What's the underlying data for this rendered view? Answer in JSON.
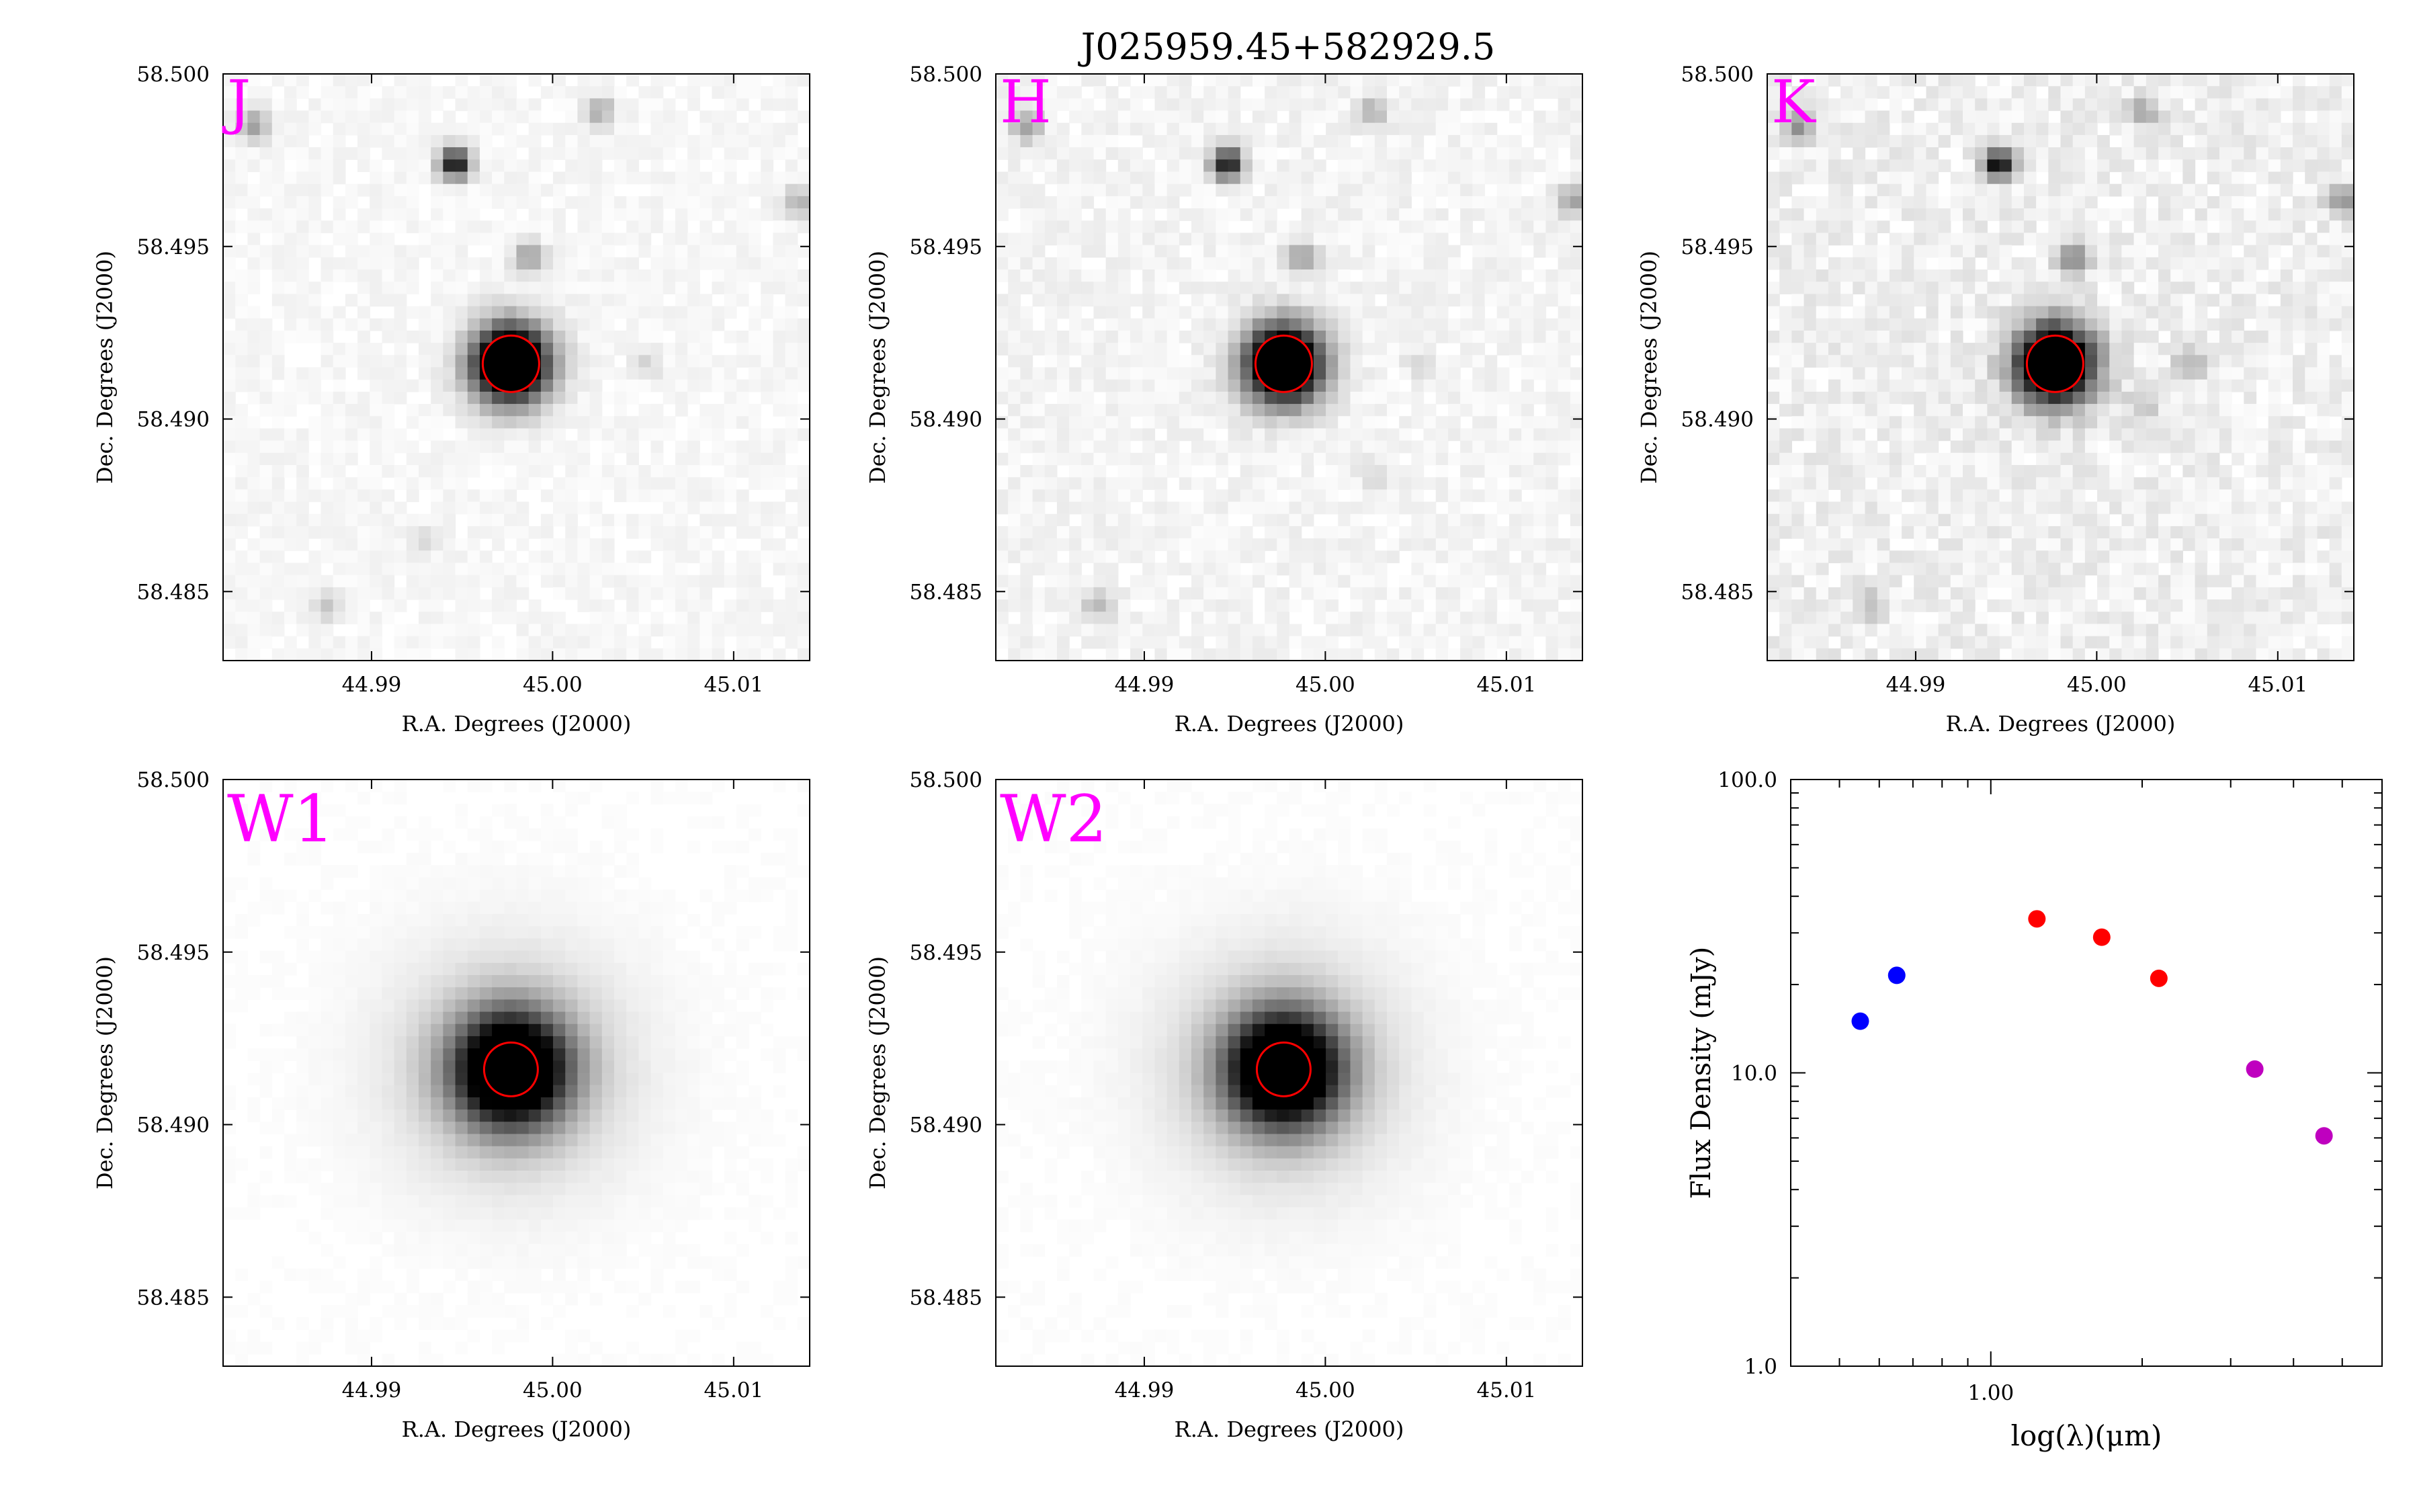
{
  "figure": {
    "title": "J025959.45+582929.5"
  },
  "colors": {
    "marker_circle": "#ff0000",
    "band_label": "#ff00ff",
    "source_core": "#000000",
    "sed_blue": "#0000ff",
    "sed_red": "#ff0000",
    "sed_magenta": "#bf00bf"
  },
  "image_panels": {
    "xlabel": "R.A. Degrees (J2000)",
    "ylabel": "Dec. Degrees (J2000)",
    "xticks": [
      "44.99",
      "45.00",
      "45.01"
    ],
    "yticks": [
      "58.500",
      "58.495",
      "58.490",
      "58.485"
    ],
    "xlim": [
      44.9818,
      45.0142
    ],
    "ylim": [
      58.483,
      58.5
    ],
    "source_ra": 44.9977,
    "source_dec": 58.4916,
    "panels": [
      {
        "band": "J",
        "noise": 0.06,
        "stars": [
          [
            44.9835,
            58.4985,
            0.35
          ],
          [
            45.0026,
            58.4989,
            0.3
          ],
          [
            44.9946,
            58.4974,
            0.95
          ],
          [
            44.9987,
            58.4947,
            0.35
          ],
          [
            45.0136,
            58.4963,
            0.3
          ],
          [
            45.0052,
            58.4916,
            0.12
          ],
          [
            44.9875,
            58.4846,
            0.2
          ],
          [
            44.9928,
            58.4864,
            0.12
          ]
        ]
      },
      {
        "band": "H",
        "noise": 0.08,
        "stars": [
          [
            44.9835,
            58.4985,
            0.35
          ],
          [
            45.0026,
            58.4989,
            0.3
          ],
          [
            44.9946,
            58.4974,
            0.95
          ],
          [
            44.9987,
            58.4947,
            0.35
          ],
          [
            45.0136,
            58.4963,
            0.35
          ],
          [
            45.0052,
            58.4916,
            0.12
          ],
          [
            44.9875,
            58.4846,
            0.25
          ],
          [
            45.0028,
            58.4883,
            0.15
          ]
        ]
      },
      {
        "band": "K",
        "noise": 0.12,
        "stars": [
          [
            44.9835,
            58.4985,
            0.35
          ],
          [
            45.0026,
            58.4989,
            0.3
          ],
          [
            44.9946,
            58.4974,
            0.95
          ],
          [
            44.9987,
            58.4947,
            0.45
          ],
          [
            45.0136,
            58.4963,
            0.4
          ],
          [
            45.0052,
            58.4916,
            0.25
          ],
          [
            45.0026,
            58.4904,
            0.2
          ],
          [
            44.9875,
            58.4846,
            0.2
          ]
        ]
      },
      {
        "band": "W1",
        "noise": 0.015,
        "stars": []
      },
      {
        "band": "W2",
        "noise": 0.015,
        "stars": []
      }
    ]
  },
  "chart_data": {
    "type": "scatter",
    "title": "",
    "xlabel": "log(λ)(μm)",
    "ylabel": "Flux Density (mJy)",
    "xscale": "log",
    "yscale": "log",
    "xlim": [
      0.4,
      6.0
    ],
    "ylim": [
      1.0,
      100.0
    ],
    "xticklabels": [
      {
        "value": 1.0,
        "label": "1.00"
      }
    ],
    "yticklabels": [
      {
        "value": 1.0,
        "label": "1.0"
      },
      {
        "value": 10.0,
        "label": "10.0"
      },
      {
        "value": 100.0,
        "label": "100.0"
      }
    ],
    "series": [
      {
        "color": "#0000ff",
        "points": [
          [
            0.55,
            15.0
          ],
          [
            0.65,
            21.5
          ]
        ]
      },
      {
        "color": "#ff0000",
        "points": [
          [
            1.235,
            33.5
          ],
          [
            1.662,
            29.0
          ],
          [
            2.159,
            21.0
          ]
        ]
      },
      {
        "color": "#bf00bf",
        "points": [
          [
            3.35,
            10.3
          ],
          [
            4.6,
            6.1
          ]
        ]
      }
    ]
  }
}
